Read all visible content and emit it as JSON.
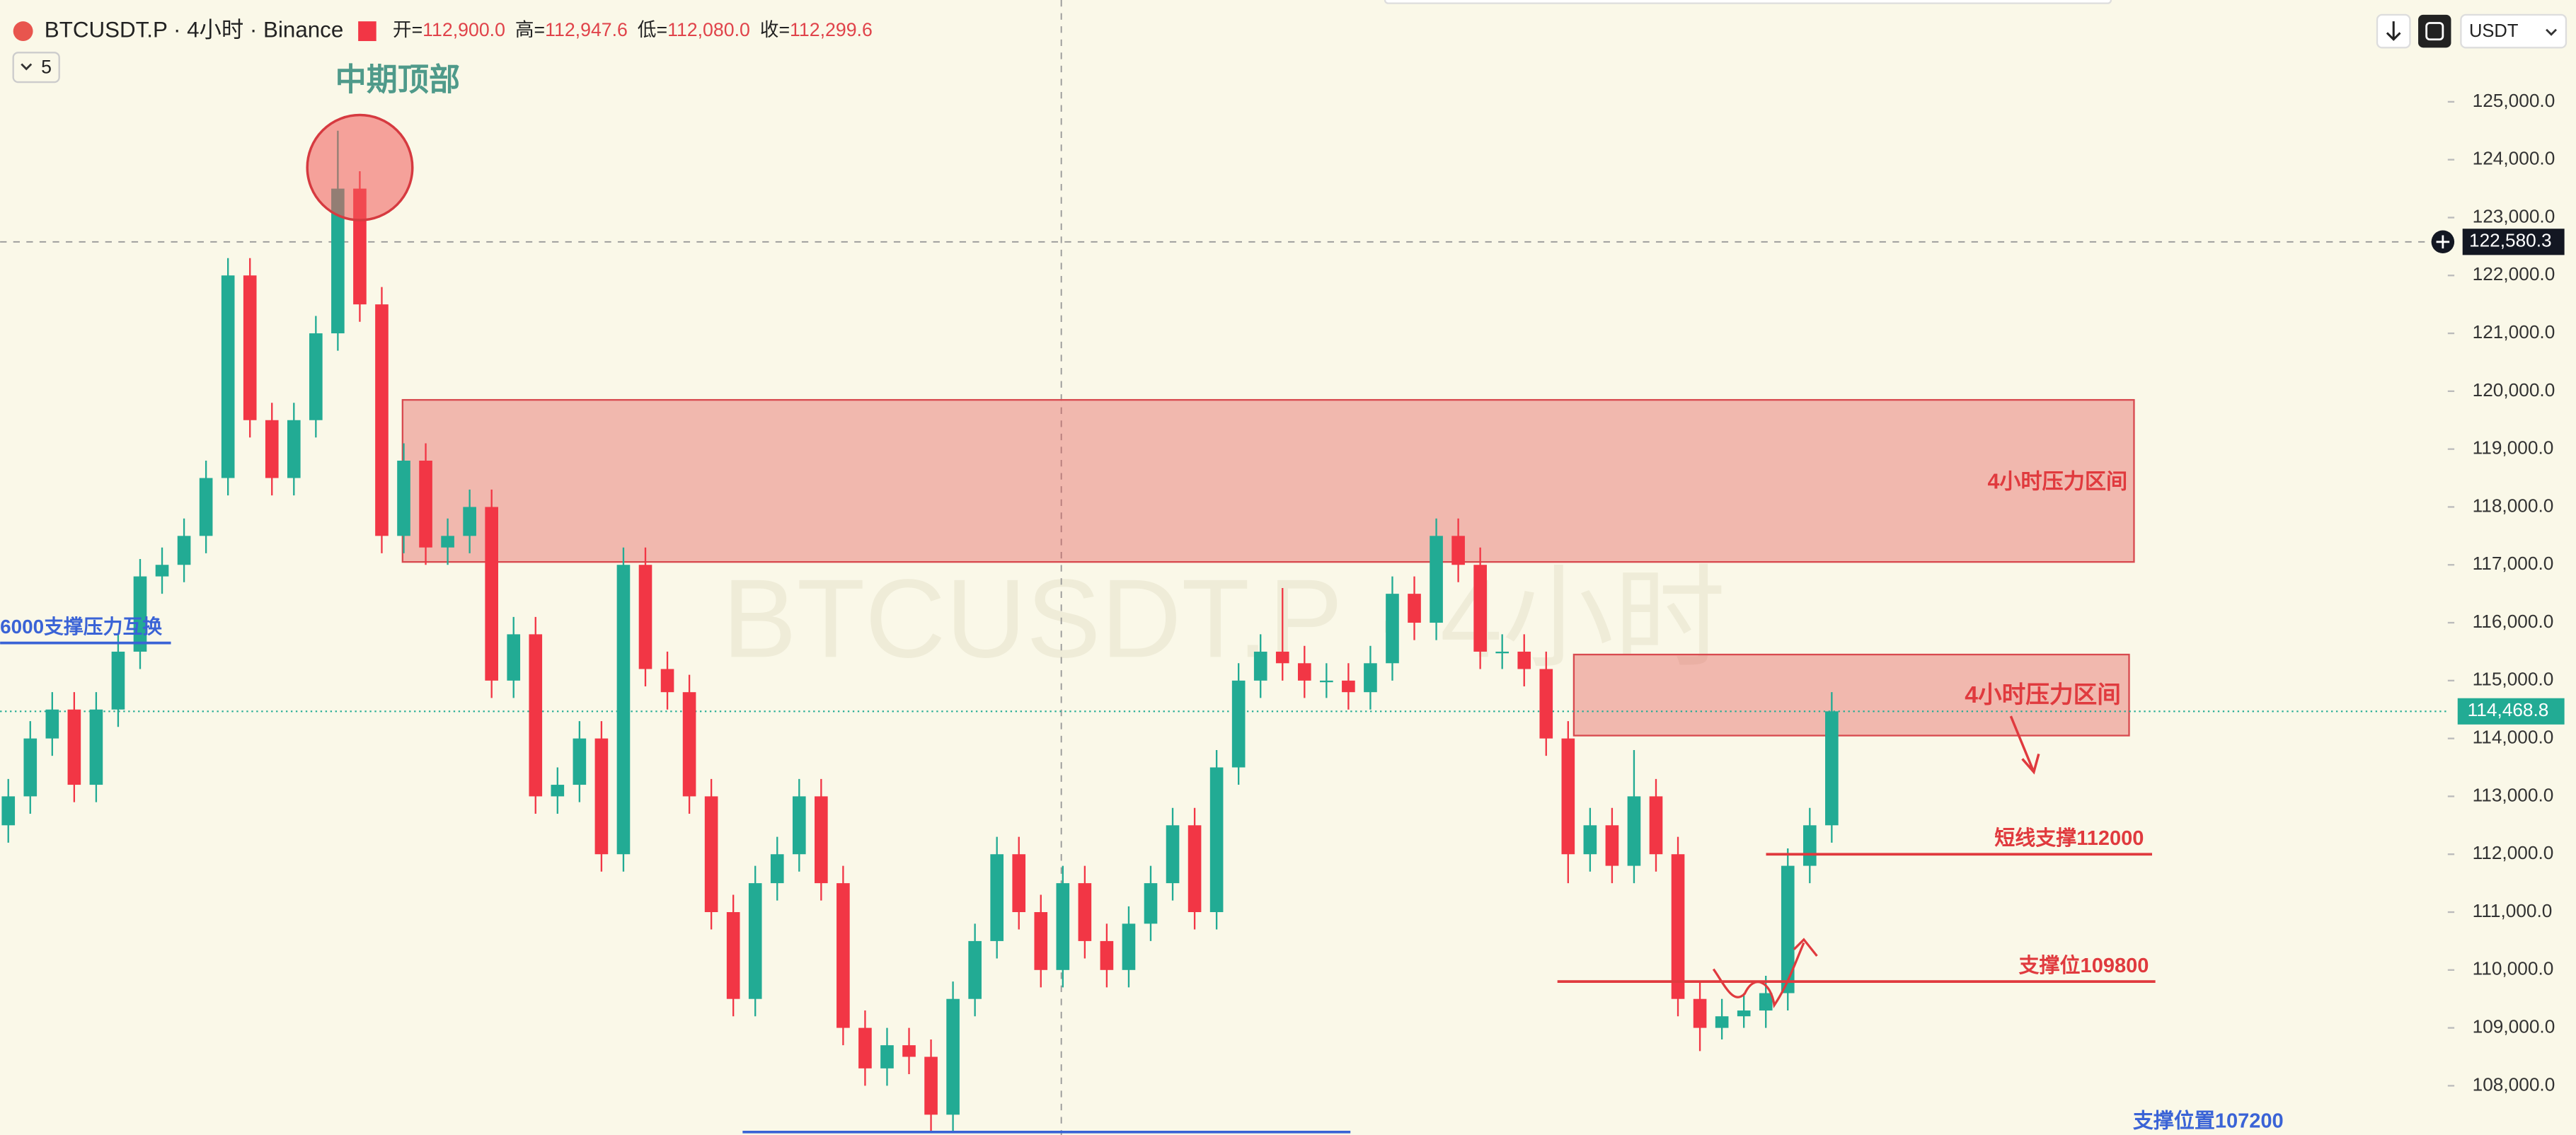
{
  "header": {
    "symbol": "BTCUSDT.P · 4小时 · Binance",
    "open_label": "开=",
    "open": "112,900.0",
    "high_label": "高=",
    "high": "112,947.6",
    "low_label": "低=",
    "low": "112,080.0",
    "close_label": "收=",
    "close": "112,299.6",
    "indicators": "5",
    "currency": "USDT"
  },
  "chart_data": {
    "type": "candlestick",
    "watermark": "BTCUSDT.P · 4小时",
    "up_color": "#22ab94",
    "down_color": "#f23645",
    "ylim": [
      107149,
      126759
    ],
    "yticks": [
      {
        "value": 108000,
        "label": "108,000.0"
      },
      {
        "value": 109000,
        "label": "109,000.0"
      },
      {
        "value": 110000,
        "label": "110,000.0"
      },
      {
        "value": 111000,
        "label": "111,000.0"
      },
      {
        "value": 112000,
        "label": "112,000.0"
      },
      {
        "value": 113000,
        "label": "113,000.0"
      },
      {
        "value": 114000,
        "label": "114,000.0"
      },
      {
        "value": 115000,
        "label": "115,000.0"
      },
      {
        "value": 116000,
        "label": "116,000.0"
      },
      {
        "value": 117000,
        "label": "117,000.0"
      },
      {
        "value": 118000,
        "label": "118,000.0"
      },
      {
        "value": 119000,
        "label": "119,000.0"
      },
      {
        "value": 120000,
        "label": "120,000.0"
      },
      {
        "value": 121000,
        "label": "121,000.0"
      },
      {
        "value": 122000,
        "label": "122,000.0"
      },
      {
        "value": 123000,
        "label": "123,000.0"
      },
      {
        "value": 124000,
        "label": "124,000.0"
      },
      {
        "value": 125000,
        "label": "125,000.0"
      }
    ],
    "grid": false,
    "crosshair_price": {
      "value": 122580.3,
      "label": "122,580.3"
    },
    "last_price": {
      "value": 114468.8,
      "label": "114,468.8"
    },
    "peak_label": "中期顶部",
    "zones": [
      {
        "label": "4小时压力区间",
        "range": [
          117050,
          119850
        ]
      },
      {
        "label": "4小时压力区间",
        "range": [
          114050,
          115450
        ]
      }
    ],
    "levels": [
      {
        "label": "短线支撑112000",
        "value": 112000,
        "color": "#e03a3e"
      },
      {
        "label": "支撑位109800",
        "value": 109800,
        "color": "#e03a3e"
      },
      {
        "label": "6000支撑压力互换",
        "value": 115650,
        "color": "#3a63d6"
      },
      {
        "label": "支撑位置107200",
        "value": 107200,
        "color": "#3a63d6"
      }
    ],
    "ohlc": [
      [
        112500,
        113300,
        112200,
        113000
      ],
      [
        113000,
        114300,
        112700,
        114000
      ],
      [
        114000,
        114800,
        113700,
        114500
      ],
      [
        114500,
        114800,
        112900,
        113200
      ],
      [
        113200,
        114800,
        112900,
        114500
      ],
      [
        114500,
        115800,
        114200,
        115500
      ],
      [
        115500,
        117100,
        115200,
        116800
      ],
      [
        116800,
        117300,
        116500,
        117000
      ],
      [
        117000,
        117800,
        116700,
        117500
      ],
      [
        117500,
        118800,
        117200,
        118500
      ],
      [
        118500,
        122300,
        118200,
        122000
      ],
      [
        122000,
        122300,
        119200,
        119500
      ],
      [
        119500,
        119800,
        118200,
        118500
      ],
      [
        118500,
        119800,
        118200,
        119500
      ],
      [
        119500,
        121300,
        119200,
        121000
      ],
      [
        121000,
        124500,
        120700,
        123500
      ],
      [
        123500,
        123800,
        121200,
        121500
      ],
      [
        121500,
        121800,
        117200,
        117500
      ],
      [
        117500,
        119100,
        117200,
        118800
      ],
      [
        118800,
        119100,
        117000,
        117300
      ],
      [
        117300,
        117800,
        117000,
        117500
      ],
      [
        117500,
        118300,
        117200,
        118000
      ],
      [
        118000,
        118300,
        114700,
        115000
      ],
      [
        115000,
        116100,
        114700,
        115800
      ],
      [
        115800,
        116100,
        112700,
        113000
      ],
      [
        113000,
        113500,
        112700,
        113200
      ],
      [
        113200,
        114300,
        112900,
        114000
      ],
      [
        114000,
        114300,
        111700,
        112000
      ],
      [
        112000,
        117300,
        111700,
        117000
      ],
      [
        117000,
        117300,
        114900,
        115200
      ],
      [
        115200,
        115500,
        114500,
        114800
      ],
      [
        114800,
        115100,
        112700,
        113000
      ],
      [
        113000,
        113300,
        110700,
        111000
      ],
      [
        111000,
        111300,
        109200,
        109500
      ],
      [
        109500,
        111800,
        109200,
        111500
      ],
      [
        111500,
        112300,
        111200,
        112000
      ],
      [
        112000,
        113300,
        111700,
        113000
      ],
      [
        113000,
        113300,
        111200,
        111500
      ],
      [
        111500,
        111800,
        108700,
        109000
      ],
      [
        109000,
        109300,
        108000,
        108300
      ],
      [
        108300,
        109000,
        108000,
        108700
      ],
      [
        108700,
        109000,
        108200,
        108500
      ],
      [
        108500,
        108800,
        107200,
        107500
      ],
      [
        107500,
        109800,
        107200,
        109500
      ],
      [
        109500,
        110800,
        109200,
        110500
      ],
      [
        110500,
        112300,
        110200,
        112000
      ],
      [
        112000,
        112300,
        110700,
        111000
      ],
      [
        111000,
        111300,
        109700,
        110000
      ],
      [
        110000,
        111800,
        109700,
        111500
      ],
      [
        111500,
        111800,
        110200,
        110500
      ],
      [
        110500,
        110800,
        109700,
        110000
      ],
      [
        110000,
        111100,
        109700,
        110800
      ],
      [
        110800,
        111800,
        110500,
        111500
      ],
      [
        111500,
        112800,
        111200,
        112500
      ],
      [
        112500,
        112800,
        110700,
        111000
      ],
      [
        111000,
        113800,
        110700,
        113500
      ],
      [
        113500,
        115300,
        113200,
        115000
      ],
      [
        115000,
        115800,
        114700,
        115500
      ],
      [
        115500,
        116600,
        115000,
        115300
      ],
      [
        115300,
        115600,
        114700,
        115000
      ],
      [
        115000,
        115300,
        114700,
        115000
      ],
      [
        115000,
        115300,
        114500,
        114800
      ],
      [
        114800,
        115600,
        114500,
        115300
      ],
      [
        115300,
        116800,
        115000,
        116500
      ],
      [
        116500,
        116800,
        115700,
        116000
      ],
      [
        116000,
        117800,
        115700,
        117500
      ],
      [
        117500,
        117800,
        116700,
        117000
      ],
      [
        117000,
        117300,
        115200,
        115500
      ],
      [
        115500,
        115800,
        115200,
        115500
      ],
      [
        115500,
        115800,
        114900,
        115200
      ],
      [
        115200,
        115500,
        113700,
        114000
      ],
      [
        114000,
        114300,
        111500,
        112000
      ],
      [
        112000,
        112800,
        111700,
        112500
      ],
      [
        112500,
        112800,
        111500,
        111800
      ],
      [
        111800,
        113800,
        111500,
        113000
      ],
      [
        113000,
        113300,
        111700,
        112000
      ],
      [
        112000,
        112300,
        109200,
        109500
      ],
      [
        109500,
        109800,
        108600,
        109000
      ],
      [
        109000,
        109500,
        108800,
        109200
      ],
      [
        109200,
        109600,
        109000,
        109300
      ],
      [
        109300,
        109900,
        109000,
        109600
      ],
      [
        109600,
        112100,
        109300,
        111800
      ],
      [
        111800,
        112800,
        111500,
        112500
      ],
      [
        112500,
        114800,
        112200,
        114468.8
      ]
    ]
  }
}
